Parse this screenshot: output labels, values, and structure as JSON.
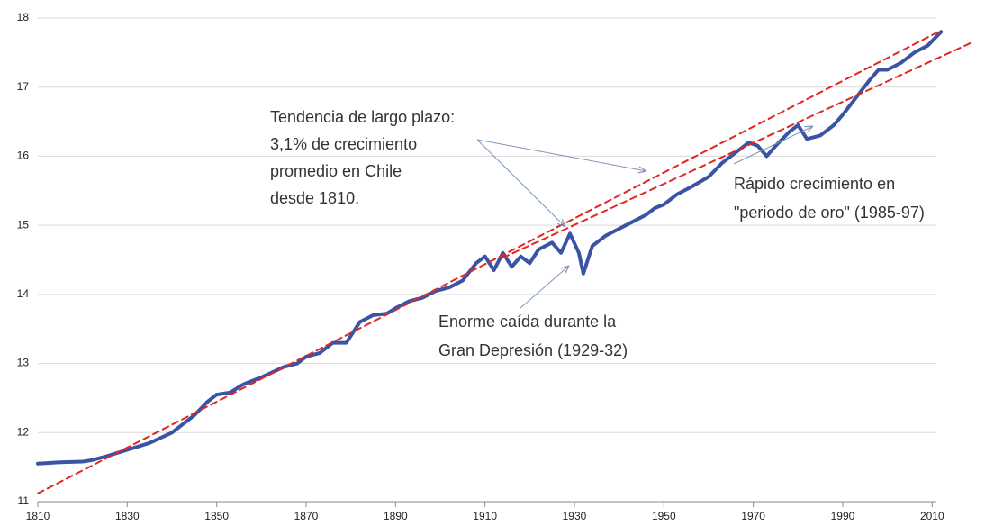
{
  "chart_data": {
    "type": "line",
    "x": [
      1810,
      1815,
      1820,
      1822,
      1825,
      1830,
      1835,
      1840,
      1845,
      1848,
      1850,
      1853,
      1856,
      1860,
      1865,
      1868,
      1870,
      1873,
      1876,
      1879,
      1882,
      1885,
      1888,
      1890,
      1893,
      1896,
      1899,
      1902,
      1905,
      1908,
      1910,
      1912,
      1914,
      1916,
      1918,
      1920,
      1922,
      1925,
      1927,
      1929,
      1931,
      1932,
      1934,
      1937,
      1940,
      1943,
      1946,
      1948,
      1950,
      1953,
      1956,
      1960,
      1963,
      1966,
      1969,
      1971,
      1973,
      1975,
      1978,
      1980,
      1982,
      1985,
      1988,
      1990,
      1993,
      1996,
      1998,
      2000,
      2003,
      2006,
      2009,
      2012
    ],
    "values": [
      11.55,
      11.57,
      11.58,
      11.6,
      11.65,
      11.75,
      11.85,
      12.0,
      12.25,
      12.45,
      12.55,
      12.58,
      12.7,
      12.8,
      12.95,
      13.0,
      13.1,
      13.15,
      13.3,
      13.3,
      13.6,
      13.7,
      13.72,
      13.8,
      13.9,
      13.95,
      14.05,
      14.1,
      14.2,
      14.45,
      14.55,
      14.35,
      14.6,
      14.4,
      14.55,
      14.45,
      14.65,
      14.75,
      14.6,
      14.88,
      14.6,
      14.3,
      14.7,
      14.85,
      14.95,
      15.05,
      15.15,
      15.25,
      15.3,
      15.45,
      15.55,
      15.7,
      15.9,
      16.05,
      16.2,
      16.15,
      16.0,
      16.15,
      16.35,
      16.45,
      16.25,
      16.3,
      16.45,
      16.6,
      16.85,
      17.1,
      17.25,
      17.25,
      17.35,
      17.5,
      17.6,
      17.8
    ],
    "color": "#3a54a4",
    "trend_lines": [
      {
        "x": [
          1810,
          2012
        ],
        "values": [
          11.12,
          17.82
        ],
        "color": "#e3261f"
      },
      {
        "x": [
          1914,
          2019
        ],
        "values": [
          14.53,
          17.65
        ],
        "color": "#e3261f"
      }
    ],
    "xlim": [
      1810,
      2019
    ],
    "ylim": [
      11,
      18
    ],
    "xticks": [
      1810,
      1830,
      1850,
      1870,
      1890,
      1910,
      1930,
      1950,
      1970,
      1990,
      2010
    ],
    "yticks": [
      11,
      12,
      13,
      14,
      15,
      16,
      17,
      18
    ],
    "grid": true,
    "annotations": [
      {
        "lines": [
          "Tendencia de largo plazo:",
          "3,1% de crecimiento",
          "promedio en Chile",
          "desde 1810."
        ]
      },
      {
        "lines": [
          "Rápido crecimiento en",
          "\"periodo de oro\" (1985-97)"
        ]
      },
      {
        "lines": [
          "Enorme caída durante la",
          "Gran Depresión (1929-32)"
        ]
      }
    ]
  }
}
